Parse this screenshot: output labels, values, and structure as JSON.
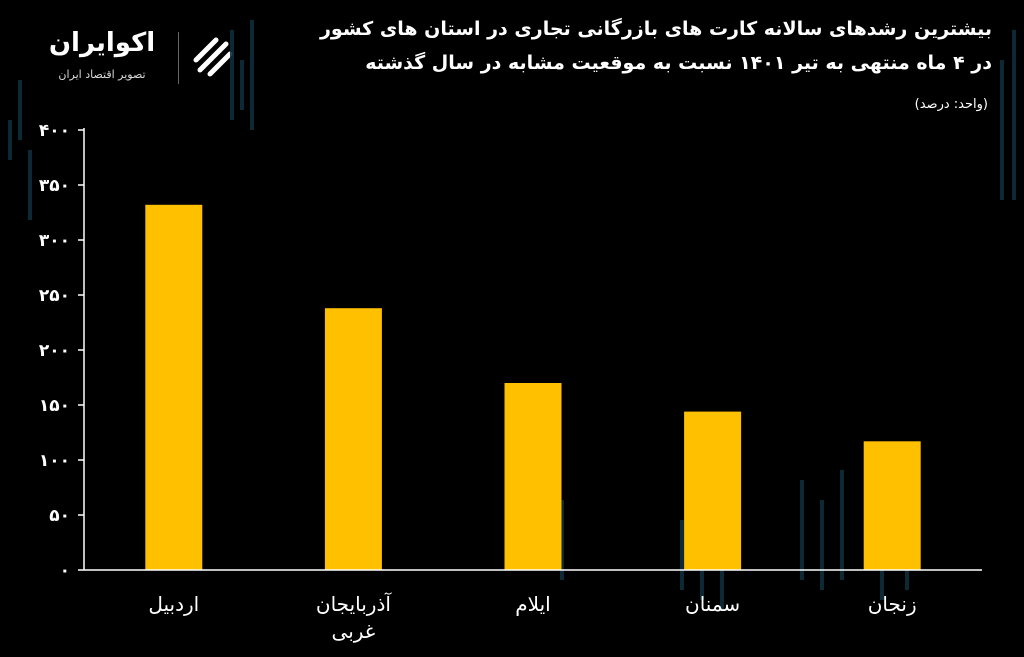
{
  "header": {
    "title_line1": "بیشترین رشدهای سالانه کارت های بازرگانی تجاری در استان های کشور",
    "title_line2": "در ۴ ماه منتهی به تیر ۱۴۰۱ نسبت به موقعیت مشابه در سال گذشته",
    "unit": "(واحد: درصد)"
  },
  "logo": {
    "name": "اکوایران",
    "tagline": "تصویر اقتصاد ایران",
    "icon": "ekoiran-logo-mark"
  },
  "colors": {
    "background": "#000000",
    "bar": "#FFC000",
    "axis": "#FFFFFF",
    "text": "#FFFFFF",
    "backdrop_candles": "#0E2E3C"
  },
  "chart_data": {
    "type": "bar",
    "title": "بیشترین رشدهای سالانه کارت های بازرگانی تجاری در استان های کشور در ۴ ماه منتهی به تیر ۱۴۰۱ نسبت به موقعیت مشابه در سال گذشته",
    "ylabel": "",
    "xlabel": "",
    "unit": "درصد",
    "categories": [
      "اردبیل",
      "آذربایجان غربی",
      "ایلام",
      "سمنان",
      "زنجان"
    ],
    "category_lines": [
      [
        "اردبیل"
      ],
      [
        "آذربایجان",
        "غربی"
      ],
      [
        "ایلام"
      ],
      [
        "سمنان"
      ],
      [
        "زنجان"
      ]
    ],
    "values": [
      332,
      238,
      170,
      144,
      117
    ],
    "ylim": [
      0,
      400
    ],
    "yticks": [
      0,
      50,
      100,
      150,
      200,
      250,
      300,
      350,
      400
    ],
    "ytick_labels": [
      "۰",
      "۵۰",
      "۱۰۰",
      "۱۵۰",
      "۲۰۰",
      "۲۵۰",
      "۳۰۰",
      "۳۵۰",
      "۴۰۰"
    ],
    "grid": false,
    "legend": "none"
  }
}
